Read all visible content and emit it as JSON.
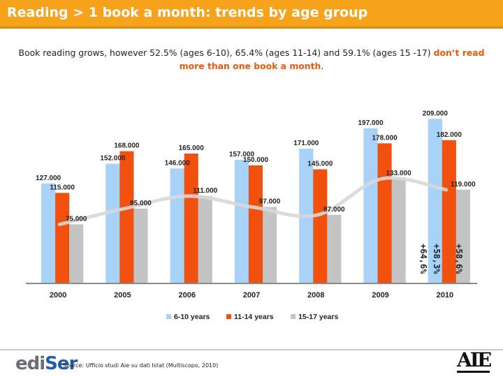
{
  "header": {
    "title": "Reading > 1 book a month: trends by age group"
  },
  "subtitle": {
    "text_plain": "Book reading grows, however 52.5%  (ages 6-10), 65.4% (ages 11-14) and 59.1% (ages 15 -17) ",
    "text_emphasis": "don’t read more than one book a month",
    "text_end": "."
  },
  "chart_data": {
    "type": "bar",
    "categories": [
      "2000",
      "2005",
      "2006",
      "2007",
      "2008",
      "2009",
      "2010"
    ],
    "series": [
      {
        "name": "6-10 years",
        "color": "#a9d2f8",
        "values": [
          127000,
          152000,
          146000,
          157000,
          171000,
          197000,
          209000
        ],
        "labels": [
          "127.000",
          "152.000",
          "146.000",
          "157.000",
          "171.000",
          "197.000",
          "209.000"
        ]
      },
      {
        "name": "11-14 years",
        "color": "#f2500d",
        "values": [
          115000,
          168000,
          165000,
          150000,
          145000,
          178000,
          182000
        ],
        "labels": [
          "115.000",
          "168.000",
          "165.000",
          "150.000",
          "145.000",
          "178.000",
          "182.000"
        ]
      },
      {
        "name": "15-17 years",
        "color": "#c4c4c4",
        "values": [
          75000,
          95000,
          111000,
          97000,
          87000,
          133000,
          119000
        ],
        "labels": [
          "75.000",
          "95.000",
          "111.000",
          "97.000",
          "87.000",
          "133.000",
          "119.000"
        ]
      }
    ],
    "trend_line": {
      "series": "15-17 years",
      "values": [
        75000,
        95000,
        111000,
        97000,
        87000,
        133000,
        119000
      ],
      "color": "#d8d8d8"
    },
    "ylim": [
      0,
      220000
    ],
    "grid": false,
    "legend": "bottom",
    "annotations": [
      "+58,6%",
      "+58,3%",
      "+64,6%"
    ]
  },
  "footer": {
    "logo_left_part1": "edi",
    "logo_left_part2": "Ser",
    "source": "Source: Ufficio studi Aie su dati Istat (Multiscopo, 2010)",
    "logo_right": "AIE"
  }
}
